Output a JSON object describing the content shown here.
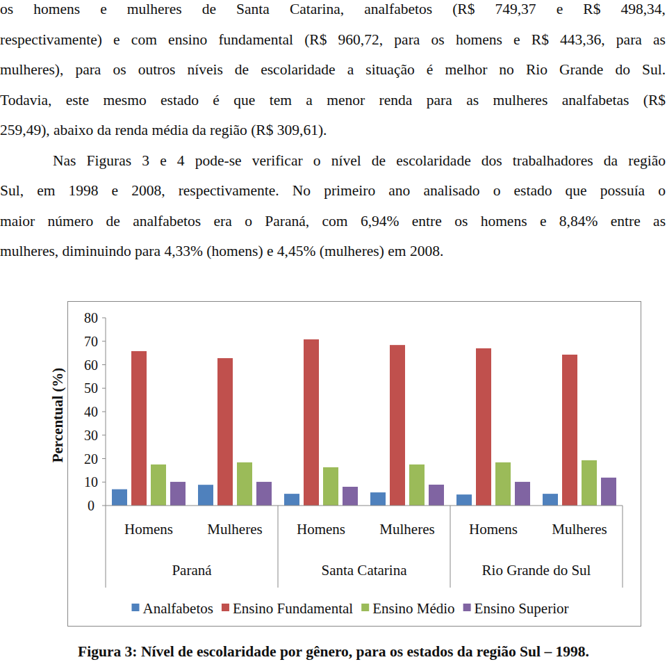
{
  "text": {
    "paragraphs": [
      [
        "os homens e mulheres de Santa Catarina, analfabetos (R$ 749,37 e R$ 498,34,",
        "respectivamente) e com ensino fundamental (R$ 960,72, para os homens e R$ 443,36, para as",
        "mulheres), para os outros níveis de escolaridade a situação é melhor no Rio Grande do Sul.",
        "Todavia, este mesmo estado é que tem a menor renda para as mulheres analfabetas (R$",
        "259,49), abaixo da renda média da região (R$ 309,61)."
      ],
      [
        "Nas Figuras 3 e 4 pode-se verificar o nível de escolaridade dos trabalhadores da região",
        "Sul, em 1998 e 2008, respectivamente. No primeiro ano analisado o estado que possuía o",
        "maior número de analfabetos era o Paraná, com 6,94% entre os homens e 8,84% entre as",
        "mulheres, diminuindo para 4,33% (homens) e 4,45% (mulheres) em 2008."
      ]
    ]
  },
  "chart_data": {
    "type": "bar",
    "title": "Figura 3: Nível de escolaridade por gênero, para os estados da região Sul – 1998.",
    "y_label": "Percentual (%)",
    "categories": [
      "Homens",
      "Mulheres",
      "Homens",
      "Mulheres",
      "Homens",
      "Mulheres"
    ],
    "group_labels": [
      "Paraná",
      "Santa Catarina",
      "Rio Grande do Sul"
    ],
    "series": [
      {
        "name": "Analfabetos",
        "color": "#4f81bd",
        "values": [
          6.94,
          8.84,
          5,
          5.6,
          4.7,
          5
        ]
      },
      {
        "name": "Ensino Fundamental",
        "color": "#c0504d",
        "values": [
          65.8,
          62.8,
          70.8,
          68.4,
          67,
          64.3
        ]
      },
      {
        "name": "Ensino Médio",
        "color": "#9bbb59",
        "values": [
          17.5,
          18.4,
          16.3,
          17.5,
          18.4,
          19.3
        ]
      },
      {
        "name": "Ensino Superior",
        "color": "#8064a2",
        "values": [
          10.1,
          10.1,
          8,
          8.9,
          10.1,
          11.9
        ]
      }
    ],
    "ylim": [
      0,
      80
    ],
    "yticks": [
      0,
      10,
      20,
      30,
      40,
      50,
      60,
      70,
      80
    ],
    "grid": false,
    "legend": "bottom"
  }
}
